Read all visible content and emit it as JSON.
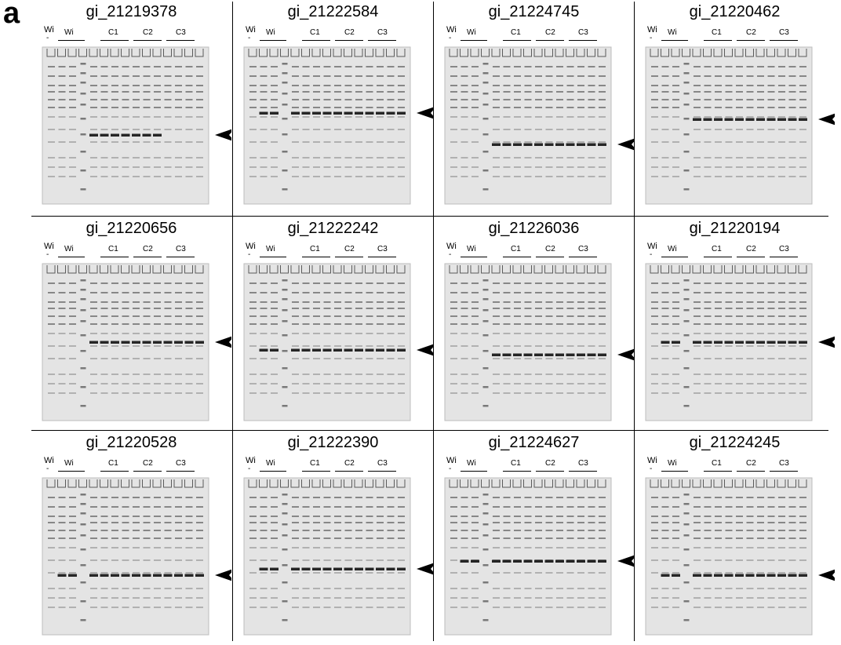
{
  "panel_label": "a",
  "lane_labels": {
    "negative_top": "Wi",
    "negative_bottom": "-",
    "wild": "Wi",
    "c1": "C1",
    "c2": "C2",
    "c3": "C3"
  },
  "colors": {
    "gel_background": "#e4e4e4",
    "band": "#3a3a3a",
    "arrow": "#000000"
  },
  "panels": [
    {
      "title": "gi_21219378",
      "arrow_level": 0.56,
      "overexpressed_lanes": "C1-C2"
    },
    {
      "title": "gi_21222584",
      "arrow_level": 0.42,
      "overexpressed_lanes": "Wi-C3"
    },
    {
      "title": "gi_21224745",
      "arrow_level": 0.62,
      "overexpressed_lanes": "C1-C3"
    },
    {
      "title": "gi_21220462",
      "arrow_level": 0.46,
      "overexpressed_lanes": "C1-C3"
    },
    {
      "title": "gi_21220656",
      "arrow_level": 0.5,
      "overexpressed_lanes": "C1-C3"
    },
    {
      "title": "gi_21222242",
      "arrow_level": 0.55,
      "overexpressed_lanes": "Wi-C3"
    },
    {
      "title": "gi_21226036",
      "arrow_level": 0.58,
      "overexpressed_lanes": "C1-C3"
    },
    {
      "title": "gi_21220194",
      "arrow_level": 0.5,
      "overexpressed_lanes": "Wi-C3"
    },
    {
      "title": "gi_21220528",
      "arrow_level": 0.62,
      "overexpressed_lanes": "Wi-C3"
    },
    {
      "title": "gi_21222390",
      "arrow_level": 0.58,
      "overexpressed_lanes": "Wi-C3"
    },
    {
      "title": "gi_21224627",
      "arrow_level": 0.53,
      "overexpressed_lanes": "Wi-C3"
    },
    {
      "title": "gi_21224245",
      "arrow_level": 0.62,
      "overexpressed_lanes": "Wi-C3"
    }
  ]
}
